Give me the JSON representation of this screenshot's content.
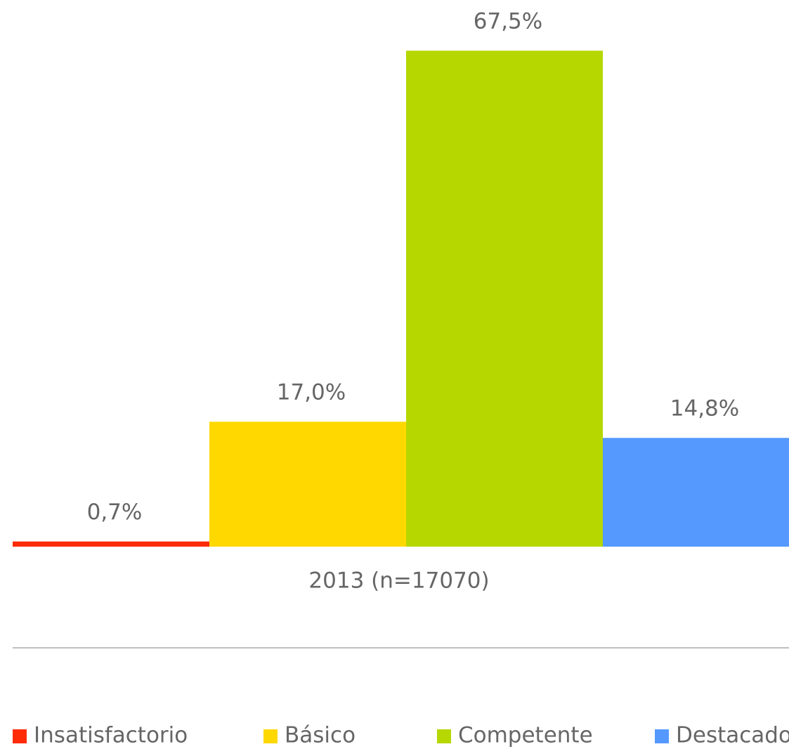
{
  "chart_data": {
    "type": "bar",
    "categories": [
      "2013 (n=17070)"
    ],
    "series": [
      {
        "name": "Insatisfactorio",
        "color": "#ff2b06",
        "values": [
          0.7
        ],
        "value_labels": [
          "0,7%"
        ]
      },
      {
        "name": "Básico",
        "color": "#ffd800",
        "values": [
          17.0
        ],
        "value_labels": [
          "17,0%"
        ]
      },
      {
        "name": "Competente",
        "color": "#b6d700",
        "values": [
          67.5
        ],
        "value_labels": [
          "67,5%"
        ]
      },
      {
        "name": "Destacado",
        "color": "#5599ff",
        "values": [
          14.8
        ],
        "value_labels": [
          "14,8%"
        ]
      }
    ],
    "ylim": [
      0,
      70
    ],
    "grid": false,
    "legend": "bottom"
  }
}
